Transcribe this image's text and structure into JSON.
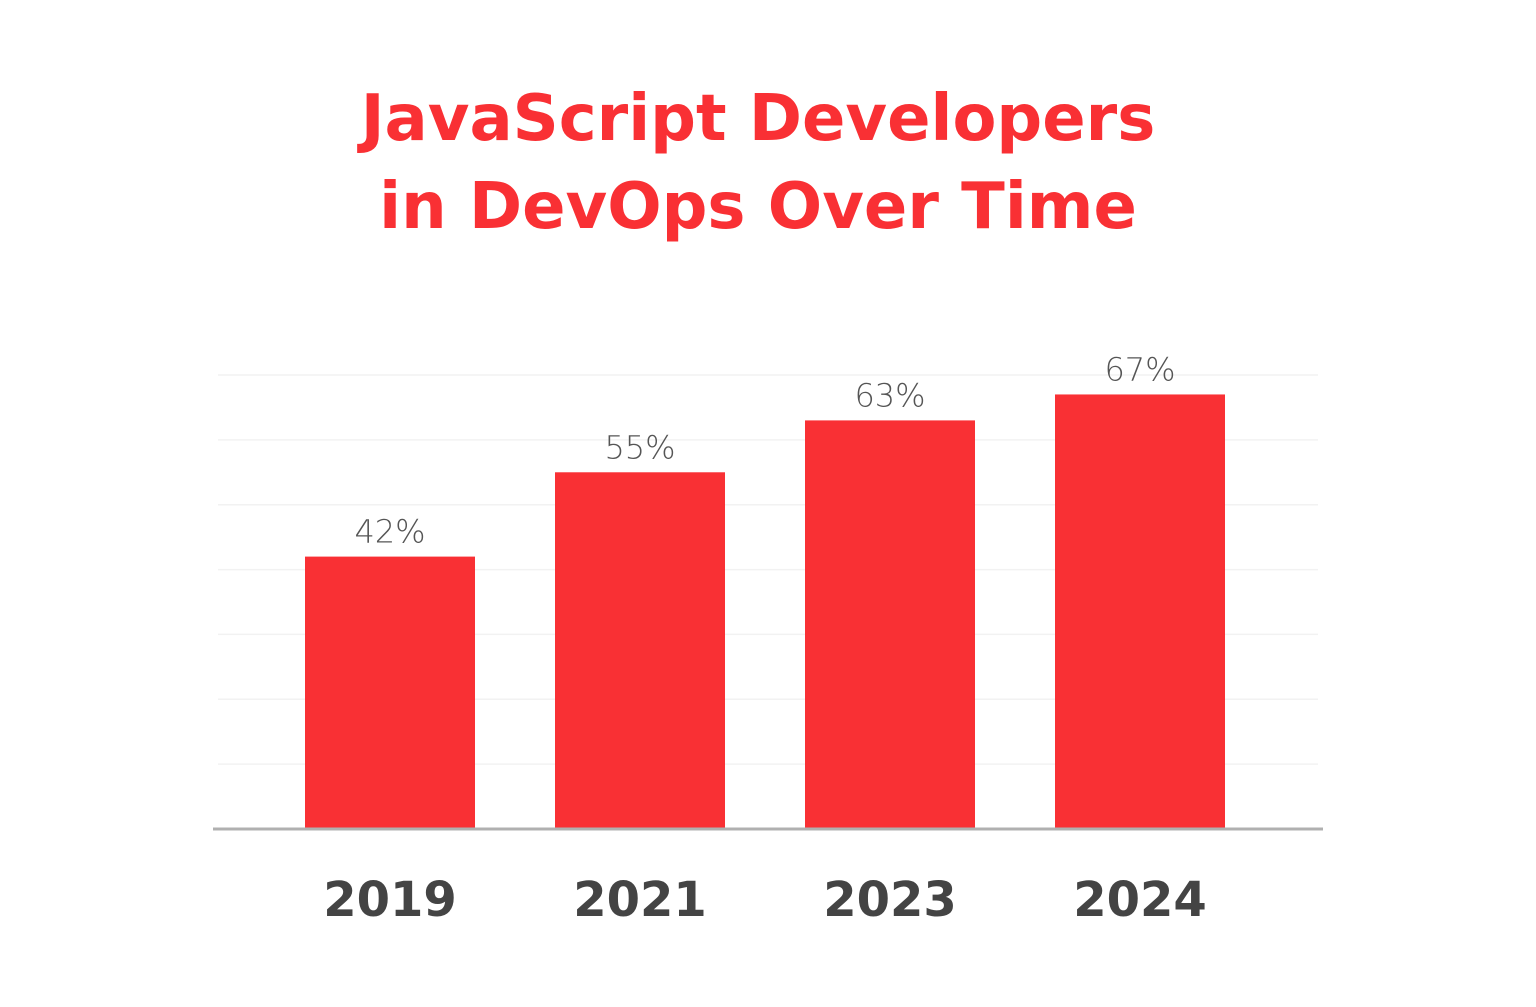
{
  "chart_data": {
    "type": "bar",
    "title": [
      "JavaScript Developers",
      "in DevOps Over Time"
    ],
    "categories": [
      "2019",
      "2021",
      "2023",
      "2024"
    ],
    "values": [
      42,
      55,
      63,
      67
    ],
    "data_labels": [
      "42%",
      "55%",
      "63%",
      "67%"
    ],
    "xlabel": "",
    "ylabel": "",
    "ylim": [
      0,
      70
    ],
    "grid": true,
    "y_axis_ticks_shown": false,
    "colors": {
      "bar": "#f93034",
      "title": "#f93034",
      "labels": "#444444",
      "grid": "#f2f2f2",
      "axis": "#b0b0b0"
    }
  }
}
